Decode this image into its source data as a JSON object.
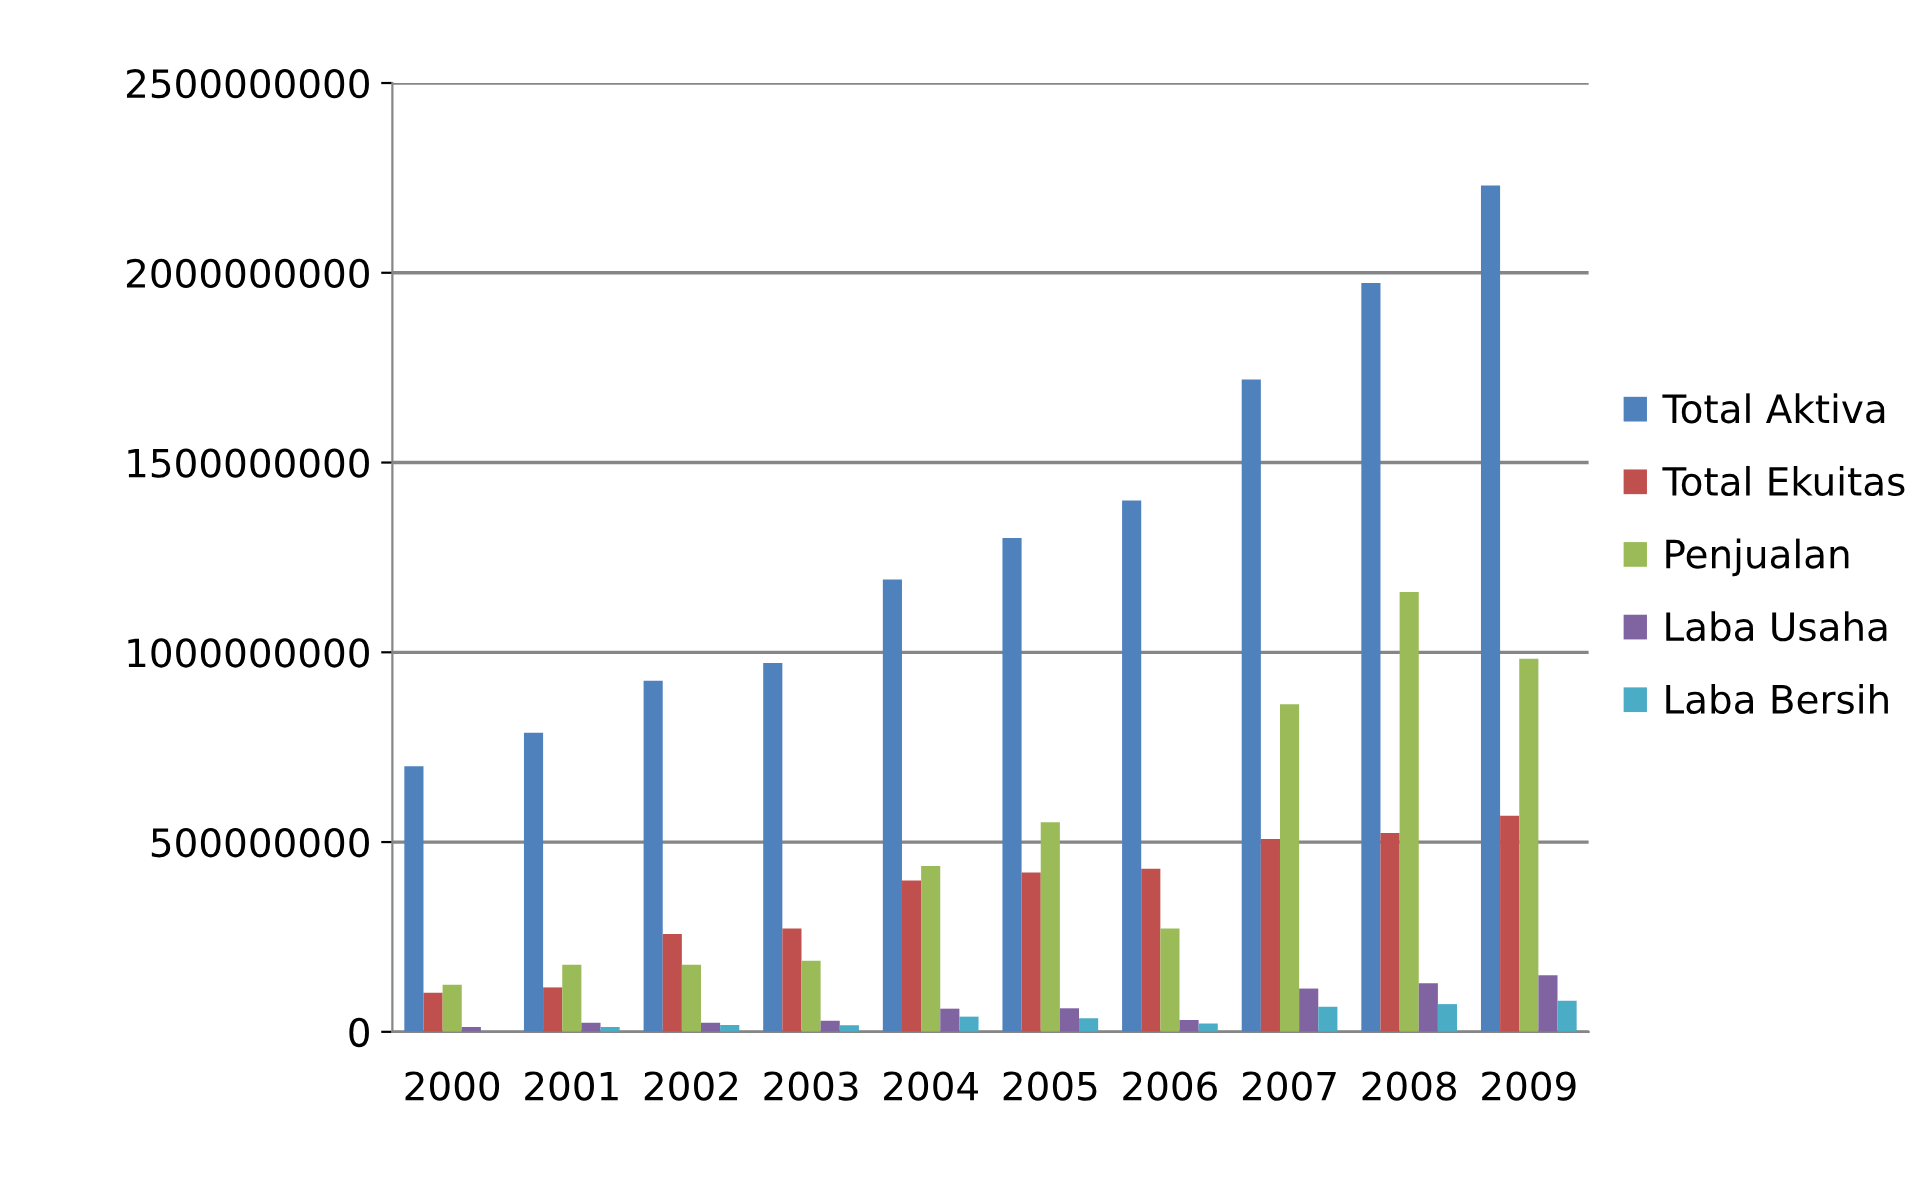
{
  "chart_data": {
    "type": "bar",
    "categories": [
      "2000",
      "2001",
      "2002",
      "2003",
      "2004",
      "2005",
      "2006",
      "2007",
      "2008",
      "2009"
    ],
    "series": [
      {
        "name": "Total Aktiva",
        "color": "#4f81bd",
        "values": [
          700000000,
          788000000,
          925000000,
          972000000,
          1192000000,
          1301000000,
          1400000000,
          1719000000,
          1973000000,
          2230000000
        ]
      },
      {
        "name": "Total Ekuitas",
        "color": "#c0504d",
        "values": [
          103000000,
          117000000,
          258000000,
          272000000,
          399000000,
          420000000,
          430000000,
          508000000,
          524000000,
          569000000
        ]
      },
      {
        "name": "Penjualan",
        "color": "#9bbb59",
        "values": [
          124000000,
          177000000,
          177000000,
          187000000,
          437000000,
          552000000,
          272000000,
          863000000,
          1159000000,
          983000000
        ]
      },
      {
        "name": "Laba Usaha",
        "color": "#8064a2",
        "values": [
          13000000,
          24000000,
          24000000,
          29000000,
          61000000,
          62000000,
          31000000,
          114000000,
          128000000,
          149000000
        ]
      },
      {
        "name": "Laba Bersih",
        "color": "#4bacc6",
        "values": [
          0,
          13000000,
          18000000,
          17000000,
          40000000,
          36000000,
          22000000,
          66000000,
          73000000,
          82000000
        ]
      }
    ],
    "ylim": [
      0,
      2500000000
    ],
    "yticks": [
      0,
      500000000,
      1000000000,
      1500000000,
      2000000000,
      2500000000
    ],
    "grid": "y",
    "legend": "right"
  }
}
